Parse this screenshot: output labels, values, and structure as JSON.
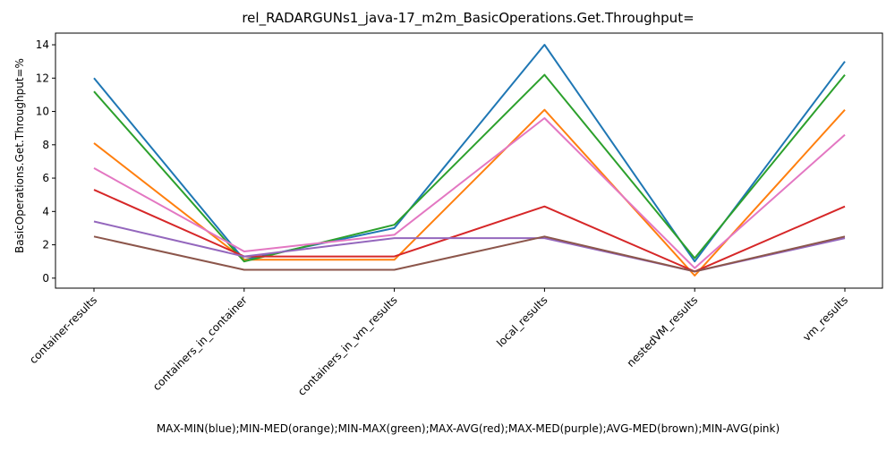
{
  "chart_data": {
    "type": "line",
    "title": "rel_RADARGUNs1_java-17_m2m_BasicOperations.Get.Throughput=",
    "xlabel": "MAX-MIN(blue);MIN-MED(orange);MIN-MAX(green);MAX-AVG(red);MAX-MED(purple);AVG-MED(brown);MIN-AVG(pink)",
    "ylabel": "BasicOperations.Get.Throughput=%",
    "categories": [
      "container-results",
      "containers_in_container",
      "containers_in_vm_results",
      "local_results",
      "nestedVM_results",
      "vm_results"
    ],
    "ylim": [
      -0.6,
      14.7
    ],
    "yticks": [
      0,
      2,
      4,
      6,
      8,
      10,
      12,
      14
    ],
    "ytick_labels": [
      "0",
      "2",
      "4",
      "6",
      "8",
      "10",
      "12",
      "14"
    ],
    "grid": false,
    "legend": "none",
    "series": [
      {
        "color": "#1f77b4",
        "values": [
          12.0,
          1.1,
          3.0,
          14.0,
          1.0,
          13.0
        ]
      },
      {
        "color": "#ff7f0e",
        "values": [
          8.1,
          1.1,
          1.1,
          10.1,
          0.15,
          10.1
        ]
      },
      {
        "color": "#2ca02c",
        "values": [
          11.2,
          1.0,
          3.2,
          12.2,
          1.2,
          12.2
        ]
      },
      {
        "color": "#d62728",
        "values": [
          5.3,
          1.3,
          1.3,
          4.3,
          0.4,
          4.3
        ]
      },
      {
        "color": "#9467bd",
        "values": [
          3.4,
          1.3,
          2.4,
          2.4,
          0.4,
          2.4
        ]
      },
      {
        "color": "#8c564b",
        "values": [
          2.5,
          0.5,
          0.5,
          2.5,
          0.4,
          2.5
        ]
      },
      {
        "color": "#e377c2",
        "values": [
          6.6,
          1.6,
          2.6,
          9.6,
          0.6,
          8.6
        ]
      }
    ]
  }
}
